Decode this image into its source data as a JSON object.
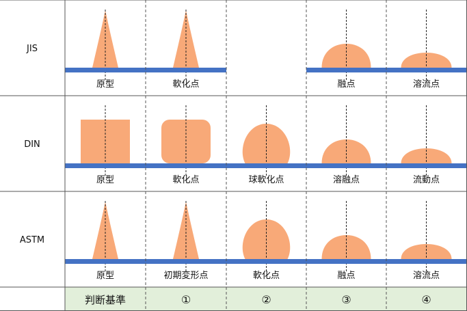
{
  "colors": {
    "shape": "#F8A978",
    "base": "#4472C4",
    "grid": "#555555",
    "footer_bg": "#E2EFDA",
    "guide": "#222222"
  },
  "rows": [
    {
      "standard": "JIS",
      "cells": [
        {
          "shape": "cone",
          "label": "原型"
        },
        {
          "shape": "cone",
          "label": "軟化点"
        },
        {
          "shape": "none",
          "label": ""
        },
        {
          "shape": "dome-mid",
          "label": "融点"
        },
        {
          "shape": "dome-low",
          "label": "溶流点"
        }
      ]
    },
    {
      "standard": "DIN",
      "cells": [
        {
          "shape": "square",
          "label": "原型"
        },
        {
          "shape": "rounded-square",
          "label": "軟化点"
        },
        {
          "shape": "sphere",
          "label": "球軟化点"
        },
        {
          "shape": "dome-mid",
          "label": "溶融点"
        },
        {
          "shape": "dome-low",
          "label": "流動点"
        }
      ]
    },
    {
      "standard": "ASTM",
      "cells": [
        {
          "shape": "cone",
          "label": "原型"
        },
        {
          "shape": "cone",
          "label": "初期変形点"
        },
        {
          "shape": "sphere",
          "label": "軟化点"
        },
        {
          "shape": "dome-mid",
          "label": "融点"
        },
        {
          "shape": "dome-low",
          "label": "溶流点"
        }
      ]
    }
  ],
  "footer": {
    "title": "判断基準",
    "criteria": [
      "",
      "①",
      "②",
      "③",
      "④"
    ]
  }
}
